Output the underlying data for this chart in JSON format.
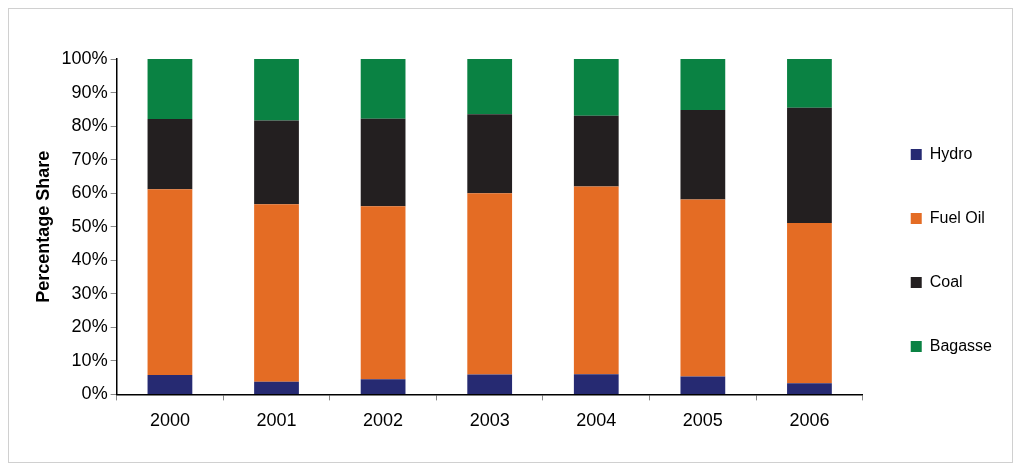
{
  "chart_data": {
    "type": "bar",
    "stacked": true,
    "ylabel": "Percentage Share",
    "categories": [
      "2000",
      "2001",
      "2002",
      "2003",
      "2004",
      "2005",
      "2006"
    ],
    "series": [
      {
        "name": "Hydro",
        "color": "#262a72",
        "values": [
          5.8,
          3.8,
          4.5,
          5.9,
          6.0,
          5.3,
          3.3
        ]
      },
      {
        "name": "Fuel Oil",
        "color": "#e46c24",
        "values": [
          55.4,
          52.9,
          51.6,
          54.1,
          56.0,
          52.8,
          47.8
        ]
      },
      {
        "name": "Coal",
        "color": "#231f20",
        "values": [
          20.9,
          25.0,
          26.1,
          23.5,
          21.1,
          26.7,
          34.4
        ]
      },
      {
        "name": "Bagasse",
        "color": "#0a8243",
        "values": [
          17.9,
          18.3,
          17.8,
          16.5,
          16.9,
          15.2,
          14.5
        ]
      }
    ],
    "ylim": [
      0,
      100
    ],
    "yticks": [
      {
        "value": 0,
        "label": "0%"
      },
      {
        "value": 10,
        "label": "10%"
      },
      {
        "value": 20,
        "label": "20%"
      },
      {
        "value": 30,
        "label": "30%"
      },
      {
        "value": 40,
        "label": "40%"
      },
      {
        "value": 50,
        "label": "50%"
      },
      {
        "value": 60,
        "label": "60%"
      },
      {
        "value": 70,
        "label": "70%"
      },
      {
        "value": 80,
        "label": "80%"
      },
      {
        "value": 90,
        "label": "90%"
      },
      {
        "value": 100,
        "label": "100%"
      }
    ],
    "grid": false,
    "legend": "right"
  }
}
